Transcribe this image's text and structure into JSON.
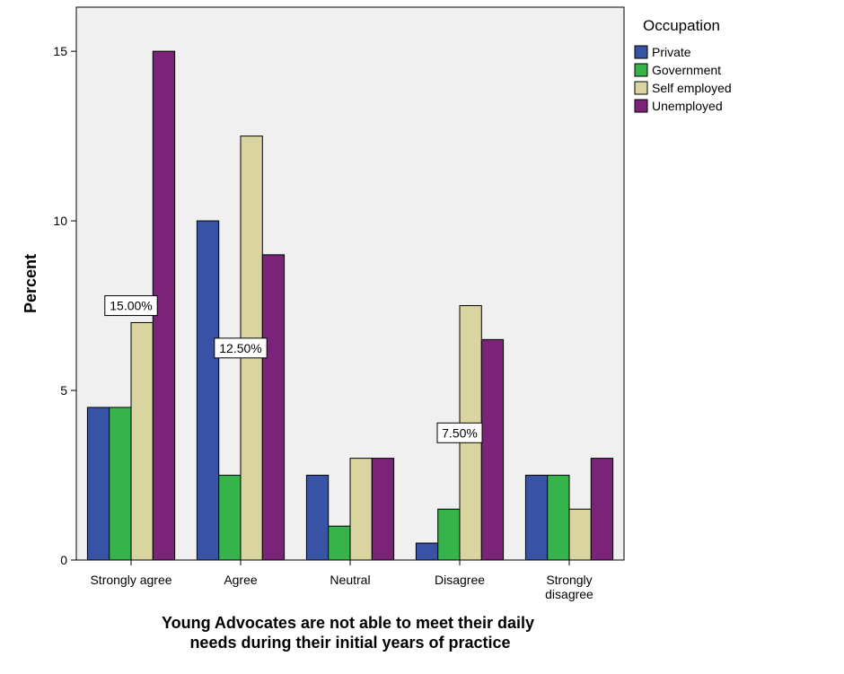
{
  "chart_data": {
    "type": "bar",
    "title": "",
    "xlabel": "Young Advocates are not able to meet their daily needs during their initial years of practice",
    "xlabel_lines": [
      "Young Advocates are not able to meet their daily",
      "needs during their initial years of practice"
    ],
    "ylabel": "Percent",
    "ylim": [
      0,
      16.3
    ],
    "yticks": [
      0,
      5,
      10,
      15
    ],
    "categories": [
      {
        "label": "Strongly agree",
        "lines": [
          "Strongly agree"
        ]
      },
      {
        "label": "Agree",
        "lines": [
          "Agree"
        ]
      },
      {
        "label": "Neutral",
        "lines": [
          "Neutral"
        ]
      },
      {
        "label": "Disagree",
        "lines": [
          "Disagree"
        ]
      },
      {
        "label": "Strongly disagree",
        "lines": [
          "Strongly",
          "disagree"
        ]
      }
    ],
    "legend_title": "Occupation",
    "legend_position": "right",
    "series": [
      {
        "name": "Private",
        "color": "#3953a4",
        "values": [
          4.5,
          10.0,
          2.5,
          0.5,
          2.5
        ]
      },
      {
        "name": "Government",
        "color": "#36b34a",
        "values": [
          4.5,
          2.5,
          1.0,
          1.5,
          2.5
        ]
      },
      {
        "name": "Self employed",
        "color": "#d9d4a0",
        "values": [
          7.0,
          12.5,
          3.0,
          7.5,
          1.5
        ]
      },
      {
        "name": "Unemployed",
        "color": "#7b2378",
        "values": [
          15.0,
          9.0,
          3.0,
          6.5,
          3.0
        ]
      }
    ],
    "annotations": [
      {
        "text": "15.00%",
        "category": 0,
        "y": 7.5
      },
      {
        "text": "12.50%",
        "category": 1,
        "y": 6.25
      },
      {
        "text": "7.50%",
        "category": 3,
        "y": 3.75
      }
    ],
    "grid": false,
    "plot_background": "#f0f0f0"
  }
}
